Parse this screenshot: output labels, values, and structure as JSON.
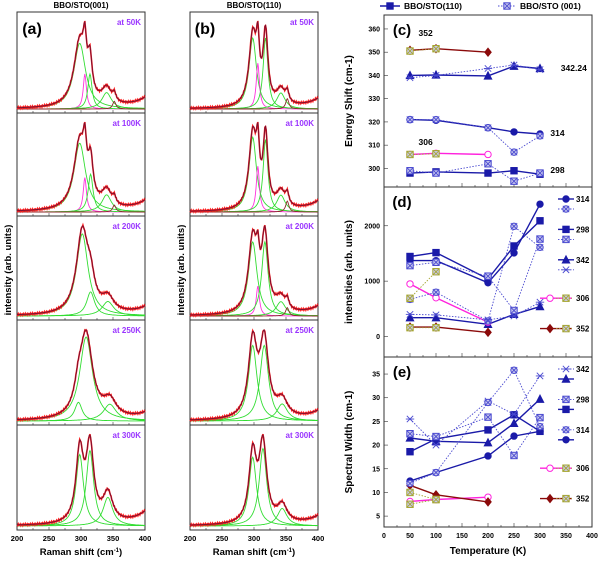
{
  "chart_data": [
    {
      "panel": "(a)",
      "type": "line",
      "title": "BBO/STO(001)",
      "xlabel": "Raman shift (cm-1)",
      "ylabel": "intensity (arb. units)",
      "xlim": [
        200,
        400
      ],
      "xticks": [
        "200",
        "250",
        "300",
        "350",
        "400"
      ],
      "subpanels": [
        {
          "label": "at 50K",
          "components": [
            [
              298,
              22,
              0.6,
              "green"
            ],
            [
              306,
              6,
              0.32,
              "magenta"
            ],
            [
              314,
              8,
              0.32,
              "green"
            ],
            [
              340,
              18,
              0.15,
              "green"
            ],
            [
              352,
              6,
              0.07,
              "brown"
            ],
            [
              430,
              45,
              0.28,
              "tail"
            ]
          ]
        },
        {
          "label": "at 100K",
          "components": [
            [
              298,
              22,
              0.6,
              "green"
            ],
            [
              306,
              6,
              0.3,
              "magenta"
            ],
            [
              315,
              9,
              0.33,
              "green"
            ],
            [
              340,
              18,
              0.15,
              "green"
            ],
            [
              352,
              6,
              0.06,
              "brown"
            ],
            [
              430,
              45,
              0.27,
              "tail"
            ]
          ]
        },
        {
          "label": "at 200K",
          "components": [
            [
              302,
              22,
              0.85,
              "green"
            ],
            [
              315,
              15,
              0.25,
              "green"
            ],
            [
              342,
              22,
              0.15,
              "green"
            ],
            [
              430,
              45,
              0.25,
              "tail"
            ]
          ]
        },
        {
          "label": "at 250K",
          "components": [
            [
              308,
              24,
              0.9,
              "green"
            ],
            [
              296,
              14,
              0.2,
              "green"
            ],
            [
              345,
              24,
              0.18,
              "green"
            ],
            [
              430,
              45,
              0.22,
              "tail"
            ]
          ]
        },
        {
          "label": "at 300K",
          "components": [
            [
              298,
              14,
              0.55,
              "green"
            ],
            [
              314,
              14,
              0.58,
              "green"
            ],
            [
              342,
              18,
              0.22,
              "green"
            ],
            [
              430,
              45,
              0.3,
              "tail"
            ]
          ]
        }
      ]
    },
    {
      "panel": "(b)",
      "type": "line",
      "title": "BBO/STO(110)",
      "xlabel": "Raman shift (cm-1)",
      "ylabel": "intensity (arb. units)",
      "xlim": [
        200,
        400
      ],
      "xticks": [
        "200",
        "250",
        "300",
        "350",
        "400"
      ],
      "subpanels": [
        {
          "label": "at 50K",
          "components": [
            [
              298,
              14,
              0.62,
              "green"
            ],
            [
              306,
              6,
              0.4,
              "magenta"
            ],
            [
              318,
              9,
              0.62,
              "green"
            ],
            [
              342,
              16,
              0.14,
              "green"
            ],
            [
              352,
              6,
              0.09,
              "brown"
            ],
            [
              430,
              45,
              0.25,
              "tail"
            ]
          ]
        },
        {
          "label": "at 100K",
          "components": [
            [
              298,
              14,
              0.62,
              "green"
            ],
            [
              306,
              6,
              0.38,
              "magenta"
            ],
            [
              318,
              9,
              0.6,
              "green"
            ],
            [
              342,
              16,
              0.14,
              "green"
            ],
            [
              352,
              6,
              0.09,
              "brown"
            ],
            [
              430,
              45,
              0.25,
              "tail"
            ]
          ]
        },
        {
          "label": "at 200K",
          "components": [
            [
              298,
              16,
              0.62,
              "green"
            ],
            [
              306,
              6,
              0.25,
              "magenta"
            ],
            [
              317,
              12,
              0.62,
              "green"
            ],
            [
              342,
              18,
              0.12,
              "green"
            ],
            [
              352,
              6,
              0.07,
              "brown"
            ],
            [
              430,
              45,
              0.22,
              "tail"
            ]
          ]
        },
        {
          "label": "at 250K",
          "components": [
            [
              298,
              16,
              0.62,
              "green"
            ],
            [
              316,
              16,
              0.62,
              "green"
            ],
            [
              344,
              20,
              0.14,
              "green"
            ],
            [
              430,
              45,
              0.22,
              "tail"
            ]
          ]
        },
        {
          "label": "at 300K",
          "components": [
            [
              298,
              14,
              0.55,
              "green"
            ],
            [
              314,
              14,
              0.62,
              "green"
            ],
            [
              344,
              18,
              0.14,
              "green"
            ],
            [
              430,
              45,
              0.22,
              "tail"
            ]
          ]
        }
      ]
    },
    {
      "panel": "(c)",
      "type": "line",
      "ylabel": "Energy Shift (cm-1)",
      "ylim": [
        292,
        366
      ],
      "yticks": [
        300,
        310,
        320,
        330,
        340,
        350,
        360
      ],
      "legend": {
        "solid": "BBO/STO(110)",
        "dotted": "BBO/STO (001)",
        "placement": "top"
      },
      "annotations": [
        [
          "352",
          80,
          357
        ],
        [
          "342.24",
          340,
          342
        ],
        [
          "314",
          320,
          314
        ],
        [
          "306",
          80,
          310
        ],
        [
          "298",
          320,
          298
        ]
      ],
      "series": [
        {
          "mode": "298",
          "sample": "110",
          "marker": "square",
          "color": "#1a1aa8",
          "x": [
            50,
            100,
            200,
            250,
            300
          ],
          "y": [
            298,
            298.5,
            298,
            299,
            297.5
          ]
        },
        {
          "mode": "306",
          "sample": "110",
          "marker": "circle-open",
          "color": "#ff22dd",
          "x": [
            50,
            100,
            200
          ],
          "y": [
            306,
            306.5,
            306
          ]
        },
        {
          "mode": "314",
          "sample": "110",
          "marker": "circle",
          "color": "#1a1aa8",
          "x": [
            50,
            100,
            200,
            250,
            300
          ],
          "y": [
            321,
            320.7,
            317.5,
            315.7,
            314.8
          ]
        },
        {
          "mode": "342",
          "sample": "110",
          "marker": "triangle",
          "color": "#1a1aa8",
          "x": [
            50,
            100,
            200,
            250,
            300
          ],
          "y": [
            340,
            340.2,
            339.8,
            344,
            343
          ]
        },
        {
          "mode": "352",
          "sample": "110",
          "marker": "diamond",
          "color": "#8b0a0a",
          "x": [
            50,
            100,
            200
          ],
          "y": [
            350.8,
            351.5,
            350
          ]
        },
        {
          "mode": "298",
          "sample": "001",
          "marker": "square-x",
          "color": "#4a4ad0",
          "x": [
            50,
            100,
            200,
            250,
            300
          ],
          "y": [
            299,
            298,
            302,
            294.5,
            298
          ]
        },
        {
          "mode": "306",
          "sample": "001",
          "marker": "square-x",
          "color": "#a5a530",
          "x": [
            50,
            100
          ],
          "y": [
            306,
            306.3
          ]
        },
        {
          "mode": "314",
          "sample": "001",
          "marker": "circle-x",
          "color": "#4a4ad0",
          "x": [
            50,
            100,
            200,
            250,
            300
          ],
          "y": [
            321,
            321,
            317.5,
            307,
            314
          ]
        },
        {
          "mode": "342",
          "sample": "001",
          "marker": "star-x",
          "color": "#4a4ad0",
          "x": [
            50,
            100,
            200,
            250,
            300
          ],
          "y": [
            339,
            340,
            343,
            344.5,
            342.5
          ]
        },
        {
          "mode": "352",
          "sample": "001",
          "marker": "square-x",
          "color": "#a5a530",
          "x": [
            50,
            100
          ],
          "y": [
            350.5,
            351.5
          ]
        }
      ]
    },
    {
      "panel": "(d)",
      "type": "line",
      "ylabel": "intensities (arb. units)",
      "ylim": [
        -370,
        2700
      ],
      "yticks": [
        0,
        1000,
        2000
      ],
      "series": [
        {
          "mode": "314",
          "sample": "110",
          "marker": "circle",
          "color": "#1a1aa8",
          "x": [
            50,
            100,
            200,
            250,
            300
          ],
          "y": [
            1370,
            1370,
            970,
            1510,
            2390
          ]
        },
        {
          "mode": "298",
          "sample": "110",
          "marker": "square",
          "color": "#1a1aa8",
          "x": [
            50,
            100,
            200,
            250,
            300
          ],
          "y": [
            1445,
            1515,
            1040,
            1635,
            2090
          ]
        },
        {
          "mode": "342",
          "sample": "110",
          "marker": "triangle",
          "color": "#1a1aa8",
          "x": [
            50,
            100,
            200,
            250,
            300
          ],
          "y": [
            340,
            340,
            220,
            400,
            540
          ]
        },
        {
          "mode": "306",
          "sample": "110",
          "marker": "circle-open",
          "color": "#ff22dd",
          "x": [
            50,
            100,
            200
          ],
          "y": [
            950,
            700,
            260
          ]
        },
        {
          "mode": "352",
          "sample": "110",
          "marker": "diamond",
          "color": "#8b0a0a",
          "x": [
            50,
            100,
            200
          ],
          "y": [
            170,
            170,
            75
          ]
        },
        {
          "mode": "314",
          "sample": "001",
          "marker": "circle-x",
          "color": "#4a4ad0",
          "x": [
            50,
            100,
            200,
            250,
            300
          ],
          "y": [
            670,
            800,
            280,
            1990,
            1610
          ]
        },
        {
          "mode": "298",
          "sample": "001",
          "marker": "square-x",
          "color": "#4a4ad0",
          "x": [
            50,
            100,
            200,
            250,
            300
          ],
          "y": [
            1280,
            1340,
            1090,
            470,
            1760
          ]
        },
        {
          "mode": "342",
          "sample": "001",
          "marker": "star-x",
          "color": "#4a4ad0",
          "x": [
            50,
            100,
            200,
            250,
            300
          ],
          "y": [
            400,
            390,
            300,
            370,
            620
          ]
        },
        {
          "mode": "306",
          "sample": "001",
          "marker": "square-x",
          "color": "#a5a530",
          "x": [
            50,
            100
          ],
          "y": [
            690,
            1170
          ]
        },
        {
          "mode": "352",
          "sample": "001",
          "marker": "square-x",
          "color": "#a5a530",
          "x": [
            50,
            100
          ],
          "y": [
            160,
            160
          ]
        }
      ],
      "legend_labels": [
        "314",
        "298",
        "342",
        "306",
        "352"
      ]
    },
    {
      "panel": "(e)",
      "type": "line",
      "ylabel": "Spectral Width (cm-1)",
      "xlabel": "Temperature (K)",
      "ylim": [
        2.7,
        38.6
      ],
      "xlim": [
        0,
        400
      ],
      "yticks": [
        5,
        10,
        15,
        20,
        25,
        30,
        35
      ],
      "xticks": [
        0,
        50,
        100,
        150,
        200,
        250,
        300,
        350,
        400
      ],
      "series": [
        {
          "mode": "342",
          "sample": "110",
          "marker": "triangle",
          "color": "#1a1aa8",
          "x": [
            50,
            100,
            200,
            250,
            300
          ],
          "y": [
            21.5,
            20.8,
            20.5,
            24.6,
            29.7
          ]
        },
        {
          "mode": "298",
          "sample": "110",
          "marker": "square",
          "color": "#1a1aa8",
          "x": [
            50,
            100,
            200,
            250,
            300
          ],
          "y": [
            18.6,
            21.3,
            23.2,
            26.4,
            22.9
          ]
        },
        {
          "mode": "314",
          "sample": "110",
          "marker": "circle",
          "color": "#1a1aa8",
          "x": [
            50,
            100,
            200,
            250,
            300
          ],
          "y": [
            12.4,
            14.2,
            17.7,
            21.9,
            22.9
          ]
        },
        {
          "mode": "306",
          "sample": "110",
          "marker": "circle-open",
          "color": "#ff22dd",
          "x": [
            50,
            100,
            200
          ],
          "y": [
            8.1,
            8.5,
            9.0
          ]
        },
        {
          "mode": "352",
          "sample": "110",
          "marker": "diamond",
          "color": "#8b0a0a",
          "x": [
            50,
            100,
            200
          ],
          "y": [
            11.5,
            9.5,
            8.0
          ]
        },
        {
          "mode": "342",
          "sample": "001",
          "marker": "star-x",
          "color": "#4a4ad0",
          "x": [
            50,
            100,
            200,
            250,
            300
          ],
          "y": [
            25.5,
            20.0,
            29.3,
            26.5,
            34.6
          ]
        },
        {
          "mode": "298",
          "sample": "001",
          "marker": "square-x",
          "color": "#4a4ad0",
          "x": [
            50,
            100,
            200,
            250,
            300
          ],
          "y": [
            22.4,
            21.8,
            25.9,
            17.8,
            25.8
          ]
        },
        {
          "mode": "314",
          "sample": "001",
          "marker": "circle-x",
          "color": "#4a4ad0",
          "x": [
            50,
            100,
            200,
            250,
            300
          ],
          "y": [
            11.9,
            14.2,
            29.0,
            35.8,
            23.9
          ]
        },
        {
          "mode": "306",
          "sample": "001",
          "marker": "square-x",
          "color": "#a5a530",
          "x": [
            50,
            100
          ],
          "y": [
            7.5,
            8.5
          ]
        },
        {
          "mode": "352",
          "sample": "001",
          "marker": "square-x",
          "color": "#a5a530",
          "x": [
            50,
            100
          ],
          "y": [
            10.0,
            8.5
          ]
        }
      ],
      "legend_labels": [
        "342",
        "298",
        "314",
        "306",
        "352"
      ]
    }
  ],
  "colors": {
    "green": "#33dd33",
    "magenta": "#ff33dd",
    "brown": "#8b2a2a",
    "fit": "#7a1030",
    "data": "#ff2020",
    "label": "#9933ff"
  }
}
